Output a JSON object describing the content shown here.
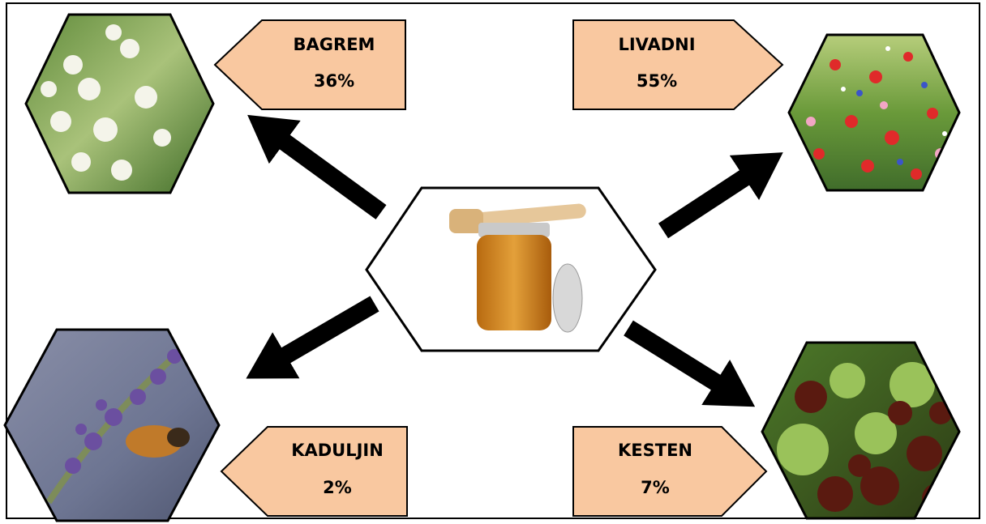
{
  "nodes": [
    {
      "label": "BAGREM",
      "value": "36%"
    },
    {
      "label": "LIVADNI",
      "value": "55%"
    },
    {
      "label": "KADULJIN",
      "value": "2%"
    },
    {
      "label": "KESTEN",
      "value": "7%"
    }
  ]
}
